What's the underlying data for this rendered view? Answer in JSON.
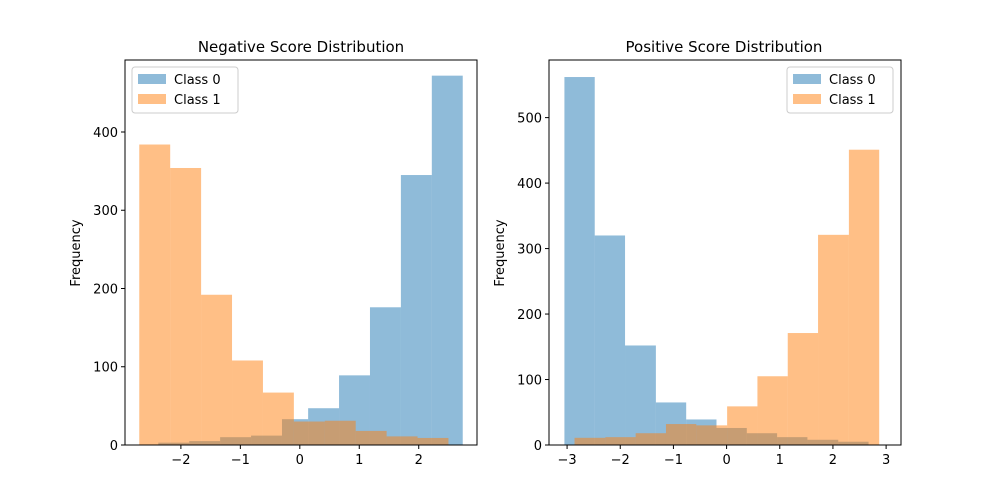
{
  "chart_data": [
    {
      "type": "bar",
      "title": "Negative Score Distribution",
      "xlabel": "",
      "ylabel": "Frequency",
      "xlim": [
        -2.94,
        2.98
      ],
      "ylim": [
        0,
        492
      ],
      "xticks": [
        -2,
        -1,
        0,
        1,
        2
      ],
      "xtick_labels": [
        "−2",
        "−1",
        "0",
        "1",
        "2"
      ],
      "yticks": [
        0,
        100,
        200,
        300,
        400
      ],
      "ytick_labels": [
        "0",
        "100",
        "200",
        "300",
        "400"
      ],
      "legend_position": "top-left",
      "series": [
        {
          "name": "Class 0",
          "color": "#1f77b4",
          "bins": [
            [
              -2.38,
              -1.86,
              3
            ],
            [
              -1.86,
              -1.34,
              5
            ],
            [
              -1.34,
              -0.82,
              10
            ],
            [
              -0.82,
              -0.3,
              12
            ],
            [
              -0.3,
              0.14,
              33
            ],
            [
              0.14,
              0.66,
              47
            ],
            [
              0.66,
              1.18,
              89
            ],
            [
              1.18,
              1.7,
              176
            ],
            [
              1.7,
              2.22,
              345
            ],
            [
              2.22,
              2.74,
              472
            ]
          ]
        },
        {
          "name": "Class 1",
          "color": "#ff7f0e",
          "bins": [
            [
              -2.7,
              -2.18,
              384
            ],
            [
              -2.18,
              -1.66,
              354
            ],
            [
              -1.66,
              -1.14,
              192
            ],
            [
              -1.14,
              -0.62,
              108
            ],
            [
              -0.62,
              -0.1,
              67
            ],
            [
              -0.1,
              0.42,
              30
            ],
            [
              0.42,
              0.94,
              31
            ],
            [
              0.94,
              1.46,
              18
            ],
            [
              1.46,
              1.98,
              11
            ],
            [
              1.98,
              2.5,
              9
            ]
          ]
        }
      ]
    },
    {
      "type": "bar",
      "title": "Positive Score Distribution",
      "xlabel": "",
      "ylabel": "Frequency",
      "xlim": [
        -3.34,
        3.28
      ],
      "ylim": [
        0,
        588
      ],
      "xticks": [
        -3,
        -2,
        -1,
        0,
        1,
        2,
        3
      ],
      "xtick_labels": [
        "−3",
        "−2",
        "−1",
        "0",
        "1",
        "2",
        "3"
      ],
      "yticks": [
        0,
        100,
        200,
        300,
        400,
        500
      ],
      "ytick_labels": [
        "0",
        "100",
        "200",
        "300",
        "400",
        "500"
      ],
      "legend_position": "top-right",
      "series": [
        {
          "name": "Class 0",
          "color": "#1f77b4",
          "bins": [
            [
              -3.05,
              -2.48,
              562
            ],
            [
              -2.48,
              -1.91,
              320
            ],
            [
              -1.91,
              -1.33,
              152
            ],
            [
              -1.33,
              -0.76,
              65
            ],
            [
              -0.76,
              -0.19,
              39
            ],
            [
              -0.19,
              0.38,
              26
            ],
            [
              0.38,
              0.95,
              18
            ],
            [
              0.95,
              1.52,
              12
            ],
            [
              1.52,
              2.1,
              8
            ],
            [
              2.1,
              2.67,
              5
            ]
          ]
        },
        {
          "name": "Class 1",
          "color": "#ff7f0e",
          "bins": [
            [
              -2.86,
              -2.28,
              11
            ],
            [
              -2.28,
              -1.71,
              12
            ],
            [
              -1.71,
              -1.14,
              18
            ],
            [
              -1.14,
              -0.57,
              32
            ],
            [
              -0.57,
              0.01,
              30
            ],
            [
              0.01,
              0.58,
              59
            ],
            [
              0.58,
              1.15,
              105
            ],
            [
              1.15,
              1.72,
              171
            ],
            [
              1.72,
              2.3,
              321
            ],
            [
              2.3,
              2.87,
              451
            ]
          ]
        }
      ]
    }
  ]
}
